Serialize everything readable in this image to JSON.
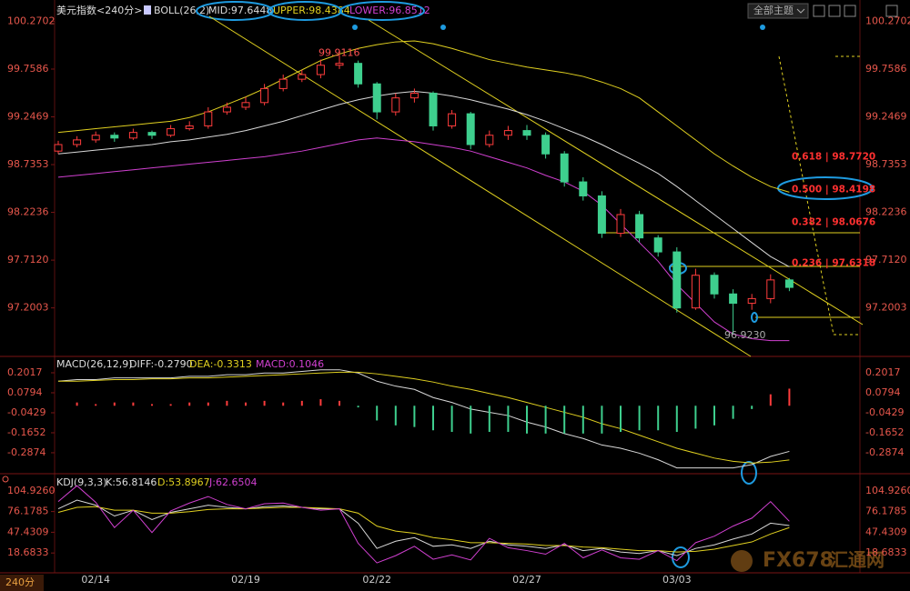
{
  "ui": {
    "theme_button": "全部主题",
    "period": "240分",
    "watermark": "FX678",
    "watermark_cn": "汇通网"
  },
  "chart_data": [
    {
      "type": "candlestick",
      "title": "美元指数<240分>",
      "indicator": "BOLL(26,2)",
      "categories": [
        null,
        null,
        "02/14",
        null,
        null,
        null,
        null,
        null,
        null,
        null,
        "02/19",
        null,
        null,
        null,
        null,
        null,
        null,
        "02/22",
        null,
        null,
        null,
        null,
        null,
        null,
        null,
        "02/27",
        null,
        null,
        null,
        null,
        null,
        null,
        null,
        "03/03",
        null,
        null,
        null,
        null,
        null,
        null
      ],
      "open": [
        98.88,
        98.95,
        99.0,
        99.05,
        99.02,
        99.08,
        99.05,
        99.12,
        99.15,
        99.3,
        99.35,
        99.4,
        99.55,
        99.65,
        99.7,
        99.8,
        99.82,
        99.6,
        99.3,
        99.45,
        99.5,
        99.15,
        99.28,
        98.95,
        99.05,
        99.1,
        99.05,
        98.85,
        98.55,
        98.4,
        98.0,
        98.2,
        97.95,
        97.8,
        97.2,
        97.55,
        97.35,
        97.25,
        97.3,
        97.5
      ],
      "high": [
        98.99,
        99.04,
        99.09,
        99.08,
        99.12,
        99.1,
        99.16,
        99.2,
        99.35,
        99.4,
        99.46,
        99.6,
        99.7,
        99.75,
        99.86,
        99.91,
        99.85,
        99.62,
        99.5,
        99.55,
        99.52,
        99.32,
        99.3,
        99.1,
        99.15,
        99.16,
        99.08,
        98.88,
        98.6,
        98.45,
        98.26,
        98.24,
        97.98,
        97.85,
        97.62,
        97.58,
        97.4,
        97.35,
        97.56,
        97.52
      ],
      "low": [
        98.85,
        98.92,
        98.97,
        98.98,
        99.0,
        99.01,
        99.03,
        99.1,
        99.12,
        99.27,
        99.32,
        99.37,
        99.52,
        99.62,
        99.66,
        99.76,
        99.56,
        99.22,
        99.26,
        99.4,
        99.1,
        99.12,
        98.9,
        98.92,
        99.0,
        99.0,
        98.8,
        98.5,
        98.35,
        97.95,
        97.96,
        97.9,
        97.75,
        97.15,
        97.18,
        97.3,
        96.92,
        97.18,
        97.25,
        97.38
      ],
      "close": [
        98.95,
        99.0,
        99.05,
        99.02,
        99.08,
        99.05,
        99.12,
        99.15,
        99.3,
        99.35,
        99.4,
        99.55,
        99.65,
        99.7,
        99.8,
        99.82,
        99.6,
        99.3,
        99.45,
        99.5,
        99.15,
        99.28,
        98.95,
        99.05,
        99.1,
        99.05,
        98.85,
        98.55,
        98.4,
        98.0,
        98.2,
        97.95,
        97.8,
        97.2,
        97.55,
        97.35,
        97.25,
        97.3,
        97.5,
        97.42
      ],
      "up_color": "#ff3c3c",
      "down_color": "#3ecf8e",
      "series": [
        {
          "name": "MID",
          "label": "MID:97.6448",
          "color": "#d8d8d8",
          "values": [
            98.85,
            98.87,
            98.89,
            98.91,
            98.93,
            98.95,
            98.98,
            99.0,
            99.03,
            99.06,
            99.1,
            99.15,
            99.2,
            99.26,
            99.32,
            99.38,
            99.43,
            99.47,
            99.5,
            99.52,
            99.5,
            99.47,
            99.43,
            99.38,
            99.33,
            99.27,
            99.2,
            99.12,
            99.04,
            98.95,
            98.85,
            98.75,
            98.64,
            98.5,
            98.35,
            98.2,
            98.05,
            97.9,
            97.75,
            97.64
          ]
        },
        {
          "name": "UPPER",
          "label": "UPPER:98.4384",
          "color": "#e0d020",
          "values": [
            99.08,
            99.1,
            99.12,
            99.14,
            99.16,
            99.18,
            99.2,
            99.24,
            99.3,
            99.38,
            99.46,
            99.55,
            99.65,
            99.75,
            99.85,
            99.92,
            99.98,
            100.02,
            100.05,
            100.06,
            100.03,
            99.98,
            99.92,
            99.86,
            99.82,
            99.78,
            99.75,
            99.72,
            99.68,
            99.62,
            99.55,
            99.45,
            99.3,
            99.15,
            99.0,
            98.85,
            98.72,
            98.6,
            98.5,
            98.44
          ]
        },
        {
          "name": "LOWER",
          "label": "LOWER:96.8512",
          "color": "#d040d0",
          "values": [
            98.6,
            98.62,
            98.64,
            98.66,
            98.68,
            98.7,
            98.72,
            98.74,
            98.76,
            98.78,
            98.8,
            98.82,
            98.85,
            98.88,
            98.92,
            98.96,
            99.0,
            99.02,
            99.0,
            98.98,
            98.95,
            98.92,
            98.88,
            98.82,
            98.76,
            98.7,
            98.62,
            98.55,
            98.45,
            98.3,
            98.1,
            97.9,
            97.7,
            97.45,
            97.25,
            97.05,
            96.92,
            96.87,
            96.85,
            96.85
          ]
        }
      ],
      "ylim": [
        96.7,
        100.45
      ],
      "yticks": [
        100.2702,
        99.7586,
        99.2469,
        98.7353,
        98.2236,
        {
          "value": 97.712,
          "label": "97.7120"
        },
        97.2003
      ],
      "high_label": 99.9116,
      "low_label": {
        "value": 96.923,
        "label": "96.9230"
      },
      "fib_levels": [
        {
          "value": 98.772,
          "label": "0.618 | 98.7720"
        },
        {
          "value": 98.4198,
          "label": "0.500 | 98.4198"
        },
        {
          "value": 98.0676,
          "label": "0.382 | 98.0676"
        },
        {
          "value": 97.6318,
          "label": "0.236 | 97.6318"
        }
      ]
    },
    {
      "type": "macd",
      "indicator": "MACD(26,12,9)",
      "series": [
        {
          "name": "DIFF",
          "label": "DIFF:-0.2790",
          "color": "#d8d8d8",
          "values": [
            0.15,
            0.16,
            0.16,
            0.17,
            0.17,
            0.17,
            0.17,
            0.18,
            0.18,
            0.19,
            0.19,
            0.2,
            0.2,
            0.21,
            0.22,
            0.22,
            0.2,
            0.15,
            0.12,
            0.1,
            0.05,
            0.02,
            -0.02,
            -0.04,
            -0.06,
            -0.1,
            -0.13,
            -0.17,
            -0.2,
            -0.24,
            -0.26,
            -0.29,
            -0.33,
            -0.38,
            -0.38,
            -0.38,
            -0.38,
            -0.36,
            -0.31,
            -0.279
          ]
        },
        {
          "name": "DEA",
          "label": "DEA:-0.3313",
          "color": "#e0d020",
          "values": [
            0.15,
            0.15,
            0.155,
            0.16,
            0.16,
            0.165,
            0.165,
            0.17,
            0.17,
            0.175,
            0.18,
            0.185,
            0.19,
            0.195,
            0.2,
            0.205,
            0.205,
            0.195,
            0.18,
            0.165,
            0.145,
            0.12,
            0.1,
            0.075,
            0.05,
            0.02,
            -0.01,
            -0.04,
            -0.07,
            -0.11,
            -0.14,
            -0.18,
            -0.22,
            -0.26,
            -0.29,
            -0.32,
            -0.34,
            -0.35,
            -0.345,
            -0.3313
          ]
        },
        {
          "name": "MACD",
          "label": "MACD:0.1046",
          "color": "#d040d0",
          "bars": true,
          "values": [
            0,
            0.02,
            0.01,
            0.02,
            0.02,
            0.01,
            0.01,
            0.02,
            0.02,
            0.03,
            0.02,
            0.03,
            0.02,
            0.03,
            0.04,
            0.03,
            -0.01,
            -0.09,
            -0.12,
            -0.13,
            -0.15,
            -0.16,
            -0.17,
            -0.16,
            -0.16,
            -0.17,
            -0.17,
            -0.17,
            -0.17,
            -0.17,
            -0.16,
            -0.15,
            -0.15,
            -0.16,
            -0.14,
            -0.12,
            -0.08,
            -0.02,
            0.07,
            0.1046
          ]
        }
      ],
      "ylim": [
        -0.41,
        0.285
      ],
      "yticks": [
        0.2017,
        0.0794,
        -0.0429,
        -0.1652,
        -0.2874
      ]
    },
    {
      "type": "kdj",
      "indicator": "KDJ(9,3,3)",
      "series": [
        {
          "name": "K",
          "label": "K:56.8146",
          "color": "#d8d8d8",
          "values": [
            80,
            92,
            85,
            70,
            78,
            65,
            75,
            80,
            85,
            82,
            80,
            83,
            84,
            82,
            80,
            80,
            60,
            25,
            35,
            40,
            28,
            30,
            25,
            35,
            30,
            28,
            25,
            30,
            22,
            25,
            20,
            18,
            22,
            15,
            25,
            30,
            38,
            45,
            60,
            56.8146
          ]
        },
        {
          "name": "D",
          "label": "D:53.8967",
          "color": "#e0d020",
          "values": [
            75,
            82,
            83,
            78,
            78,
            74,
            74,
            76,
            79,
            80,
            80,
            81,
            82,
            82,
            81,
            80,
            74,
            56,
            49,
            46,
            40,
            37,
            33,
            33,
            32,
            31,
            29,
            29,
            27,
            26,
            24,
            22,
            22,
            20,
            21,
            24,
            29,
            34,
            45,
            53.8967
          ]
        },
        {
          "name": "J",
          "label": "J:62.6504",
          "color": "#d040d0",
          "values": [
            90,
            112,
            89,
            54,
            78,
            47,
            77,
            88,
            97,
            86,
            80,
            87,
            88,
            82,
            78,
            80,
            32,
            5,
            15,
            28,
            10,
            16,
            9,
            39,
            26,
            22,
            17,
            32,
            12,
            23,
            12,
            10,
            22,
            8,
            33,
            42,
            56,
            67,
            90,
            62.6504
          ]
        }
      ],
      "ylim": [
        -6.3,
        127.4
      ],
      "yticks": [
        {
          "value": 104.926,
          "label": "104.9260"
        },
        76.1785,
        47.4309,
        18.6833
      ]
    }
  ]
}
